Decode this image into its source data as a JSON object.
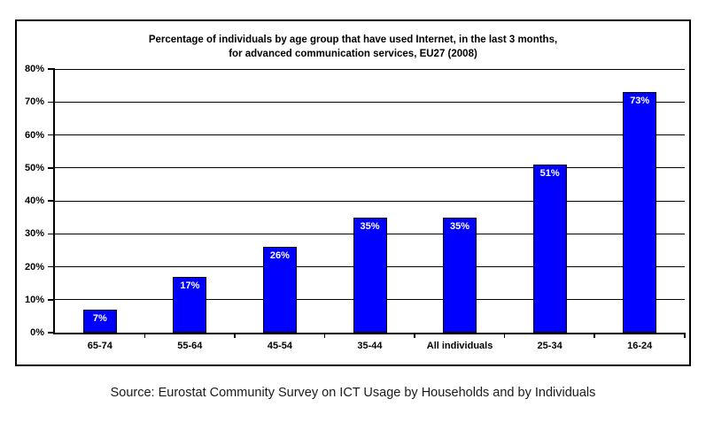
{
  "chart_data": {
    "type": "bar",
    "title_line1": "Percentage of individuals by age group that have used Internet, in the last 3 months,",
    "title_line2": "for advanced communication services, EU27 (2008)",
    "categories": [
      "65-74",
      "55-64",
      "45-54",
      "35-44",
      "All individuals",
      "25-34",
      "16-24"
    ],
    "values": [
      7,
      17,
      26,
      35,
      35,
      51,
      73
    ],
    "value_labels": [
      "7%",
      "17%",
      "26%",
      "35%",
      "35%",
      "51%",
      "73%"
    ],
    "y_tick_labels": [
      "0%",
      "10%",
      "20%",
      "30%",
      "40%",
      "50%",
      "60%",
      "70%",
      "80%"
    ],
    "ylim": [
      0,
      80
    ],
    "y_step": 10,
    "grid": true,
    "legend": "none",
    "xlabel": "",
    "ylabel": "",
    "colors": {
      "bar_fill": "#0000FF",
      "bar_border": "#000000",
      "bar_label": "#FFFFFF",
      "axis": "#000000",
      "text": "#000000"
    }
  },
  "source_note": "Source: Eurostat Community Survey on ICT Usage by Households and by Individuals"
}
